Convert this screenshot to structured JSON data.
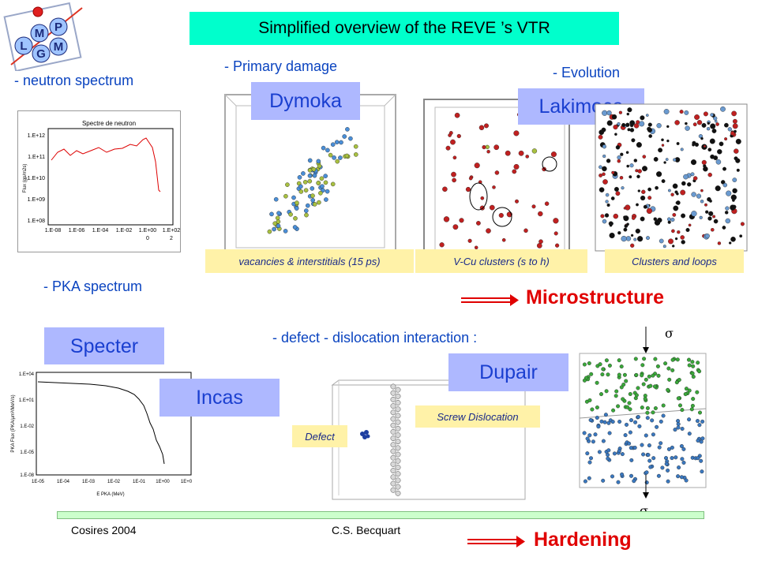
{
  "title": "Simplified overview of the REVE ’s   VTR",
  "logo": {
    "letters": [
      "L",
      "M",
      "G",
      "P",
      "M"
    ]
  },
  "labels": {
    "neutron_spectrum": "- neutron spectrum",
    "primary_damage": "- Primary damage",
    "evolution": "- Evolution",
    "pka_spectrum": "- PKA spectrum",
    "defect_dislocation": "- defect - dislocation interaction :"
  },
  "codes": {
    "dymoka": "Dymoka",
    "lakimoca": "Lakimoca",
    "specter": "Specter",
    "incas": "Incas",
    "dupair": "Dupair"
  },
  "captions": {
    "vacancies": "vacancies & interstitials (15 ps)",
    "vcu": "V-Cu clusters (s to h)",
    "clusters": "Clusters and loops",
    "screw": "Screw Dislocation",
    "defect": "Defect"
  },
  "outcomes": {
    "microstructure": "Microstructure",
    "hardening": "Hardening"
  },
  "sigma": "σ",
  "footer": {
    "left": "Cosires 2004",
    "center": "C.S. Becquart"
  },
  "neutron_chart": {
    "title": "Spectre de neutron",
    "ylabel": "Flux (gp/m2s)",
    "yticks": [
      "1.E+12",
      "1.E+11",
      "1.E+10",
      "1.E+09",
      "1.E+08"
    ],
    "xticks": [
      "1.E-08",
      "1.E-06",
      "1.E-04",
      "1.E-02",
      "1.E+00",
      "1.E+02"
    ],
    "xticks2": [
      "0",
      "2"
    ]
  },
  "pka_chart": {
    "ylabel": "PKA Flux (PKA/µm³/MeV/s)",
    "xlabel": "E PKA (MeV)",
    "yticks": [
      "1.E+04",
      "1.E+01",
      "1.E-02",
      "1.E-05",
      "1.E-08"
    ],
    "xticks": [
      "1E-05",
      "1E-04",
      "1E-03",
      "1E-02",
      "1E-01",
      "1E+00",
      "1E+0"
    ]
  },
  "colors": {
    "title_bg": "#00ffcc",
    "code_bg": "#aeb8ff",
    "caption_bg": "#fff2a8",
    "accent_red": "#e00000",
    "label_blue": "#0b44c0"
  }
}
